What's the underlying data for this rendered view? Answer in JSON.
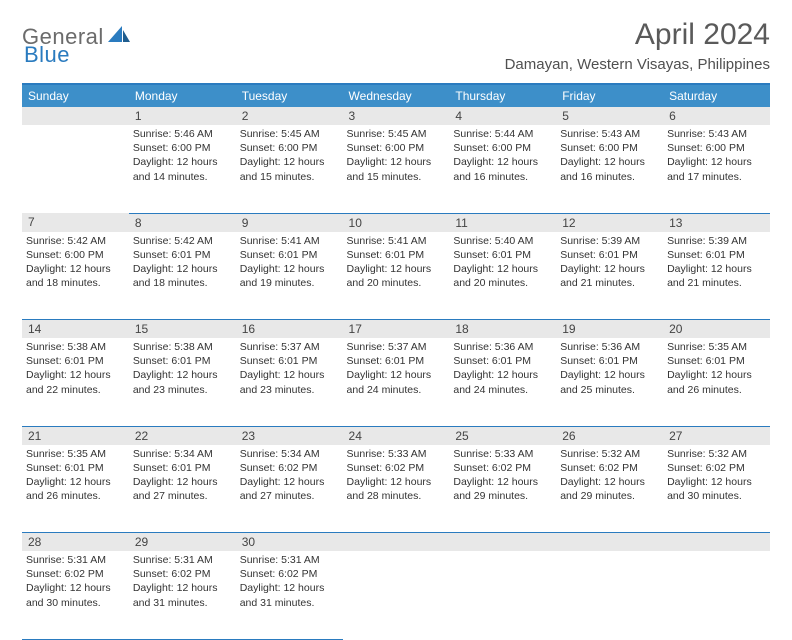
{
  "logo": {
    "part1": "General",
    "part2": "Blue"
  },
  "title": "April 2024",
  "location": "Damayan, Western Visayas, Philippines",
  "colors": {
    "header_bg": "#3d8fc9",
    "border": "#2a7bbf",
    "daynum_bg": "#e8e8e8",
    "logo_gray": "#6b6b6b",
    "logo_blue": "#2a7bbf"
  },
  "weekdays": [
    "Sunday",
    "Monday",
    "Tuesday",
    "Wednesday",
    "Thursday",
    "Friday",
    "Saturday"
  ],
  "weeks": [
    [
      {
        "num": "",
        "lines": []
      },
      {
        "num": "1",
        "lines": [
          "Sunrise: 5:46 AM",
          "Sunset: 6:00 PM",
          "Daylight: 12 hours",
          "and 14 minutes."
        ]
      },
      {
        "num": "2",
        "lines": [
          "Sunrise: 5:45 AM",
          "Sunset: 6:00 PM",
          "Daylight: 12 hours",
          "and 15 minutes."
        ]
      },
      {
        "num": "3",
        "lines": [
          "Sunrise: 5:45 AM",
          "Sunset: 6:00 PM",
          "Daylight: 12 hours",
          "and 15 minutes."
        ]
      },
      {
        "num": "4",
        "lines": [
          "Sunrise: 5:44 AM",
          "Sunset: 6:00 PM",
          "Daylight: 12 hours",
          "and 16 minutes."
        ]
      },
      {
        "num": "5",
        "lines": [
          "Sunrise: 5:43 AM",
          "Sunset: 6:00 PM",
          "Daylight: 12 hours",
          "and 16 minutes."
        ]
      },
      {
        "num": "6",
        "lines": [
          "Sunrise: 5:43 AM",
          "Sunset: 6:00 PM",
          "Daylight: 12 hours",
          "and 17 minutes."
        ]
      }
    ],
    [
      {
        "num": "7",
        "lines": [
          "Sunrise: 5:42 AM",
          "Sunset: 6:00 PM",
          "Daylight: 12 hours",
          "and 18 minutes."
        ]
      },
      {
        "num": "8",
        "lines": [
          "Sunrise: 5:42 AM",
          "Sunset: 6:01 PM",
          "Daylight: 12 hours",
          "and 18 minutes."
        ]
      },
      {
        "num": "9",
        "lines": [
          "Sunrise: 5:41 AM",
          "Sunset: 6:01 PM",
          "Daylight: 12 hours",
          "and 19 minutes."
        ]
      },
      {
        "num": "10",
        "lines": [
          "Sunrise: 5:41 AM",
          "Sunset: 6:01 PM",
          "Daylight: 12 hours",
          "and 20 minutes."
        ]
      },
      {
        "num": "11",
        "lines": [
          "Sunrise: 5:40 AM",
          "Sunset: 6:01 PM",
          "Daylight: 12 hours",
          "and 20 minutes."
        ]
      },
      {
        "num": "12",
        "lines": [
          "Sunrise: 5:39 AM",
          "Sunset: 6:01 PM",
          "Daylight: 12 hours",
          "and 21 minutes."
        ]
      },
      {
        "num": "13",
        "lines": [
          "Sunrise: 5:39 AM",
          "Sunset: 6:01 PM",
          "Daylight: 12 hours",
          "and 21 minutes."
        ]
      }
    ],
    [
      {
        "num": "14",
        "lines": [
          "Sunrise: 5:38 AM",
          "Sunset: 6:01 PM",
          "Daylight: 12 hours",
          "and 22 minutes."
        ]
      },
      {
        "num": "15",
        "lines": [
          "Sunrise: 5:38 AM",
          "Sunset: 6:01 PM",
          "Daylight: 12 hours",
          "and 23 minutes."
        ]
      },
      {
        "num": "16",
        "lines": [
          "Sunrise: 5:37 AM",
          "Sunset: 6:01 PM",
          "Daylight: 12 hours",
          "and 23 minutes."
        ]
      },
      {
        "num": "17",
        "lines": [
          "Sunrise: 5:37 AM",
          "Sunset: 6:01 PM",
          "Daylight: 12 hours",
          "and 24 minutes."
        ]
      },
      {
        "num": "18",
        "lines": [
          "Sunrise: 5:36 AM",
          "Sunset: 6:01 PM",
          "Daylight: 12 hours",
          "and 24 minutes."
        ]
      },
      {
        "num": "19",
        "lines": [
          "Sunrise: 5:36 AM",
          "Sunset: 6:01 PM",
          "Daylight: 12 hours",
          "and 25 minutes."
        ]
      },
      {
        "num": "20",
        "lines": [
          "Sunrise: 5:35 AM",
          "Sunset: 6:01 PM",
          "Daylight: 12 hours",
          "and 26 minutes."
        ]
      }
    ],
    [
      {
        "num": "21",
        "lines": [
          "Sunrise: 5:35 AM",
          "Sunset: 6:01 PM",
          "Daylight: 12 hours",
          "and 26 minutes."
        ]
      },
      {
        "num": "22",
        "lines": [
          "Sunrise: 5:34 AM",
          "Sunset: 6:01 PM",
          "Daylight: 12 hours",
          "and 27 minutes."
        ]
      },
      {
        "num": "23",
        "lines": [
          "Sunrise: 5:34 AM",
          "Sunset: 6:02 PM",
          "Daylight: 12 hours",
          "and 27 minutes."
        ]
      },
      {
        "num": "24",
        "lines": [
          "Sunrise: 5:33 AM",
          "Sunset: 6:02 PM",
          "Daylight: 12 hours",
          "and 28 minutes."
        ]
      },
      {
        "num": "25",
        "lines": [
          "Sunrise: 5:33 AM",
          "Sunset: 6:02 PM",
          "Daylight: 12 hours",
          "and 29 minutes."
        ]
      },
      {
        "num": "26",
        "lines": [
          "Sunrise: 5:32 AM",
          "Sunset: 6:02 PM",
          "Daylight: 12 hours",
          "and 29 minutes."
        ]
      },
      {
        "num": "27",
        "lines": [
          "Sunrise: 5:32 AM",
          "Sunset: 6:02 PM",
          "Daylight: 12 hours",
          "and 30 minutes."
        ]
      }
    ],
    [
      {
        "num": "28",
        "lines": [
          "Sunrise: 5:31 AM",
          "Sunset: 6:02 PM",
          "Daylight: 12 hours",
          "and 30 minutes."
        ]
      },
      {
        "num": "29",
        "lines": [
          "Sunrise: 5:31 AM",
          "Sunset: 6:02 PM",
          "Daylight: 12 hours",
          "and 31 minutes."
        ]
      },
      {
        "num": "30",
        "lines": [
          "Sunrise: 5:31 AM",
          "Sunset: 6:02 PM",
          "Daylight: 12 hours",
          "and 31 minutes."
        ]
      },
      {
        "num": "",
        "lines": []
      },
      {
        "num": "",
        "lines": []
      },
      {
        "num": "",
        "lines": []
      },
      {
        "num": "",
        "lines": []
      }
    ]
  ]
}
